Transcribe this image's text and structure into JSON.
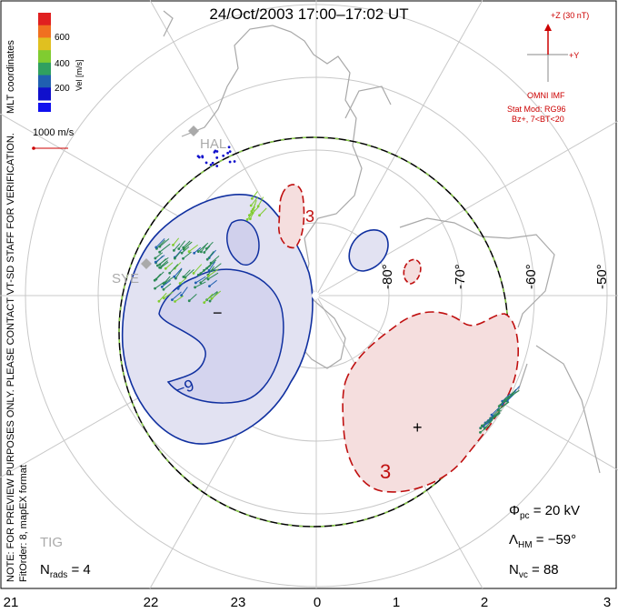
{
  "title": "24/Oct/2003 17:00–17:02 UT",
  "colorbar": {
    "ticks": [
      "600",
      "400",
      "200"
    ],
    "label": "Vel [m/s]",
    "colors": [
      "#1010cc",
      "#2060b0",
      "#30a060",
      "#80cc30",
      "#e0c020",
      "#f07020",
      "#e02020"
    ]
  },
  "scale_label": "1000 m/s",
  "side_notes": {
    "mlt": "MLT coordinates",
    "preview": "NOTE: FOR PREVIEW PURPOSES ONLY. PLEASE CONTACT VT-SD STAFF FOR VERIFICATION.",
    "fit": "FitOrder: 8, mapEX format"
  },
  "imf": {
    "z_label": "+Z (30 nT)",
    "y_label": "+Y",
    "source": "OMNI IMF",
    "model": "Stat Mod: RG96",
    "condition": "Bz+, 7<BT<20"
  },
  "stations": [
    "HAL",
    "SYE",
    "TIG"
  ],
  "lat_labels": [
    "-80°",
    "-70°",
    "-60°",
    "-50°"
  ],
  "mlt_ticks": [
    "21",
    "22",
    "23",
    "0",
    "1",
    "2",
    "3"
  ],
  "contours": {
    "negative": "−9",
    "positive": "3",
    "negative_label": "−",
    "positive_label": "+"
  },
  "stats": {
    "phi_pc": "Φ",
    "phi_sub": "pc",
    "phi_val": "= 20 kV",
    "lambda": "Λ",
    "lambda_sub": "HM",
    "lambda_val": "= −59°",
    "nvc": "N",
    "nvc_sub": "vc",
    "nvc_val": "= 88",
    "nrads": "N",
    "nrads_sub": "rads",
    "nrads_val": "= 4"
  }
}
